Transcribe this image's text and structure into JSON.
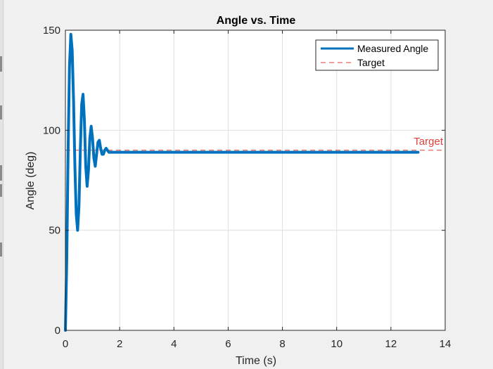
{
  "chart_data": {
    "type": "line",
    "title": "Angle vs. Time",
    "xlabel": "Time (s)",
    "ylabel": "Angle (deg)",
    "xlim": [
      0,
      14
    ],
    "ylim": [
      0,
      150
    ],
    "xticks": [
      0,
      2,
      4,
      6,
      8,
      10,
      12,
      14
    ],
    "yticks": [
      0,
      50,
      100,
      150
    ],
    "grid": true,
    "legend_position": "top-right",
    "series": [
      {
        "name": "Measured Angle",
        "style": "solid",
        "color": "#0072bd",
        "x": [
          0,
          0.05,
          0.1,
          0.15,
          0.2,
          0.25,
          0.3,
          0.35,
          0.4,
          0.45,
          0.5,
          0.55,
          0.6,
          0.65,
          0.7,
          0.75,
          0.8,
          0.85,
          0.9,
          0.95,
          1.0,
          1.05,
          1.1,
          1.15,
          1.2,
          1.25,
          1.3,
          1.35,
          1.4,
          1.45,
          1.5,
          1.55,
          1.6,
          1.7,
          1.8,
          2.0,
          3.0,
          4.0,
          5.0,
          6.0,
          7.0,
          8.0,
          9.0,
          10.0,
          11.0,
          12.0,
          13.0
        ],
        "y": [
          0,
          35,
          90,
          132,
          148,
          140,
          115,
          82,
          58,
          50,
          62,
          90,
          113,
          118,
          105,
          82,
          72,
          80,
          96,
          102,
          96,
          86,
          82,
          88,
          94,
          95,
          91,
          88,
          88,
          90,
          91,
          90,
          89,
          89,
          89,
          89,
          89,
          89,
          89,
          89,
          89,
          89,
          89,
          89,
          89,
          89,
          89
        ]
      },
      {
        "name": "Target",
        "style": "dashed",
        "color": "#e0403a",
        "x": [
          0,
          14
        ],
        "y": [
          90,
          90
        ]
      }
    ],
    "annotations": [
      {
        "text": "Target",
        "x": 13.3,
        "y": 90,
        "color": "#e0403a"
      }
    ]
  }
}
